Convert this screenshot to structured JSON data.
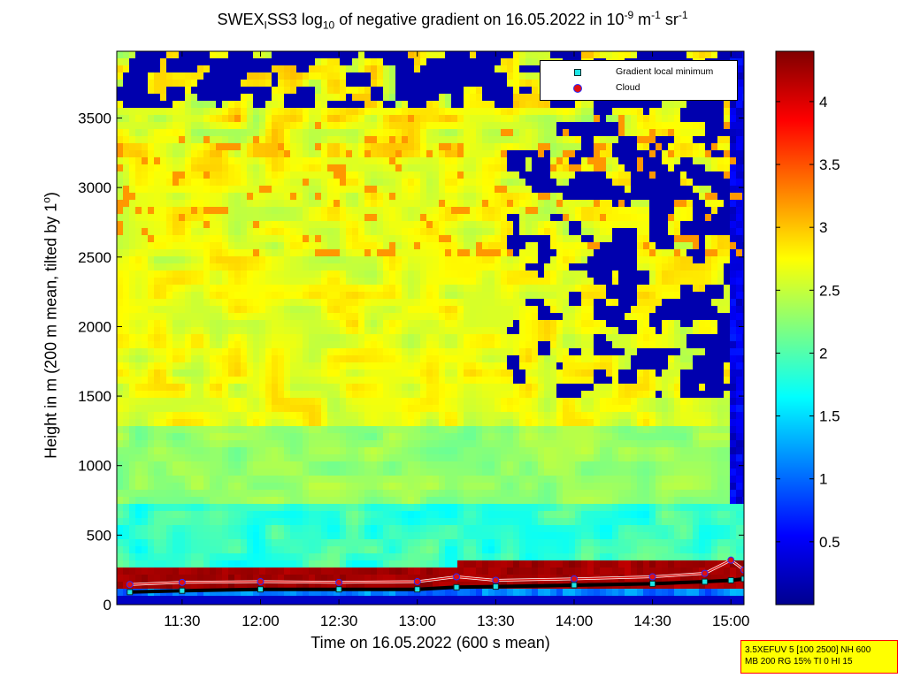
{
  "title": {
    "main": "SWEX",
    "sub1": "I",
    "mid": "SS3 log",
    "sub2": "10",
    "rest": " of negative gradient on 16.05.2022 in 10",
    "sup1": "-9",
    "unit1": " m",
    "sup2": "-1",
    "unit2": " sr",
    "sup3": "-1"
  },
  "ylabel": {
    "text": "Height in m (200 m mean, tilted by 1",
    "sup": "o",
    "end": ")"
  },
  "xlabel": "Time on 16.05.2022 (600 s mean)",
  "legend": {
    "gradient_label": "Gradient local minimum",
    "cloud_label": "Cloud"
  },
  "infobox": {
    "line1": "3.5XEFUV 5 [100 2500] NH 600",
    "line2": "MB 200 RG 15% TI 0 HI 15"
  },
  "colors": {
    "gradient_marker": "#1ee6e6",
    "cloud_marker": "#e01010",
    "cloud_edge": "#2a2aff",
    "infobox_bg": "#ffff00",
    "infobox_border": "#ff0000"
  },
  "chart_data": {
    "type": "heatmap",
    "colormap": "jet",
    "x_unit": "time HH:MM",
    "xlim": [
      "11:05",
      "15:05"
    ],
    "ylim": [
      0,
      3980
    ],
    "x_ticks": [
      "11:30",
      "12:00",
      "12:30",
      "13:00",
      "13:30",
      "14:00",
      "14:30",
      "15:00"
    ],
    "y_ticks": [
      0,
      500,
      1000,
      1500,
      2000,
      2500,
      3000,
      3500
    ],
    "y_tick_labels": [
      "0",
      "500",
      "1000",
      "1500",
      "2000",
      "2500",
      "3000",
      "3500"
    ],
    "colorbar": {
      "min": 0,
      "max": 4.4,
      "ticks": [
        0.5,
        1,
        1.5,
        2,
        2.5,
        3,
        3.5,
        4
      ],
      "tick_labels": [
        "0.5",
        "1",
        "1.5",
        "2",
        "2.5",
        "3",
        "3.5",
        "4"
      ]
    },
    "series": [
      {
        "name": "Gradient local minimum",
        "x": [
          "11:10",
          "11:30",
          "12:00",
          "12:30",
          "13:00",
          "13:15",
          "13:30",
          "14:00",
          "14:30",
          "14:50",
          "15:00",
          "15:05"
        ],
        "y": [
          90,
          100,
          110,
          110,
          110,
          125,
          130,
          140,
          150,
          165,
          175,
          185
        ]
      },
      {
        "name": "Cloud",
        "x": [
          "11:10",
          "11:30",
          "12:00",
          "12:30",
          "13:00",
          "13:15",
          "13:30",
          "14:00",
          "14:30",
          "14:50",
          "15:00",
          "15:05"
        ],
        "y": [
          145,
          160,
          165,
          160,
          165,
          200,
          175,
          185,
          200,
          225,
          320,
          250
        ]
      }
    ],
    "grid": false
  }
}
